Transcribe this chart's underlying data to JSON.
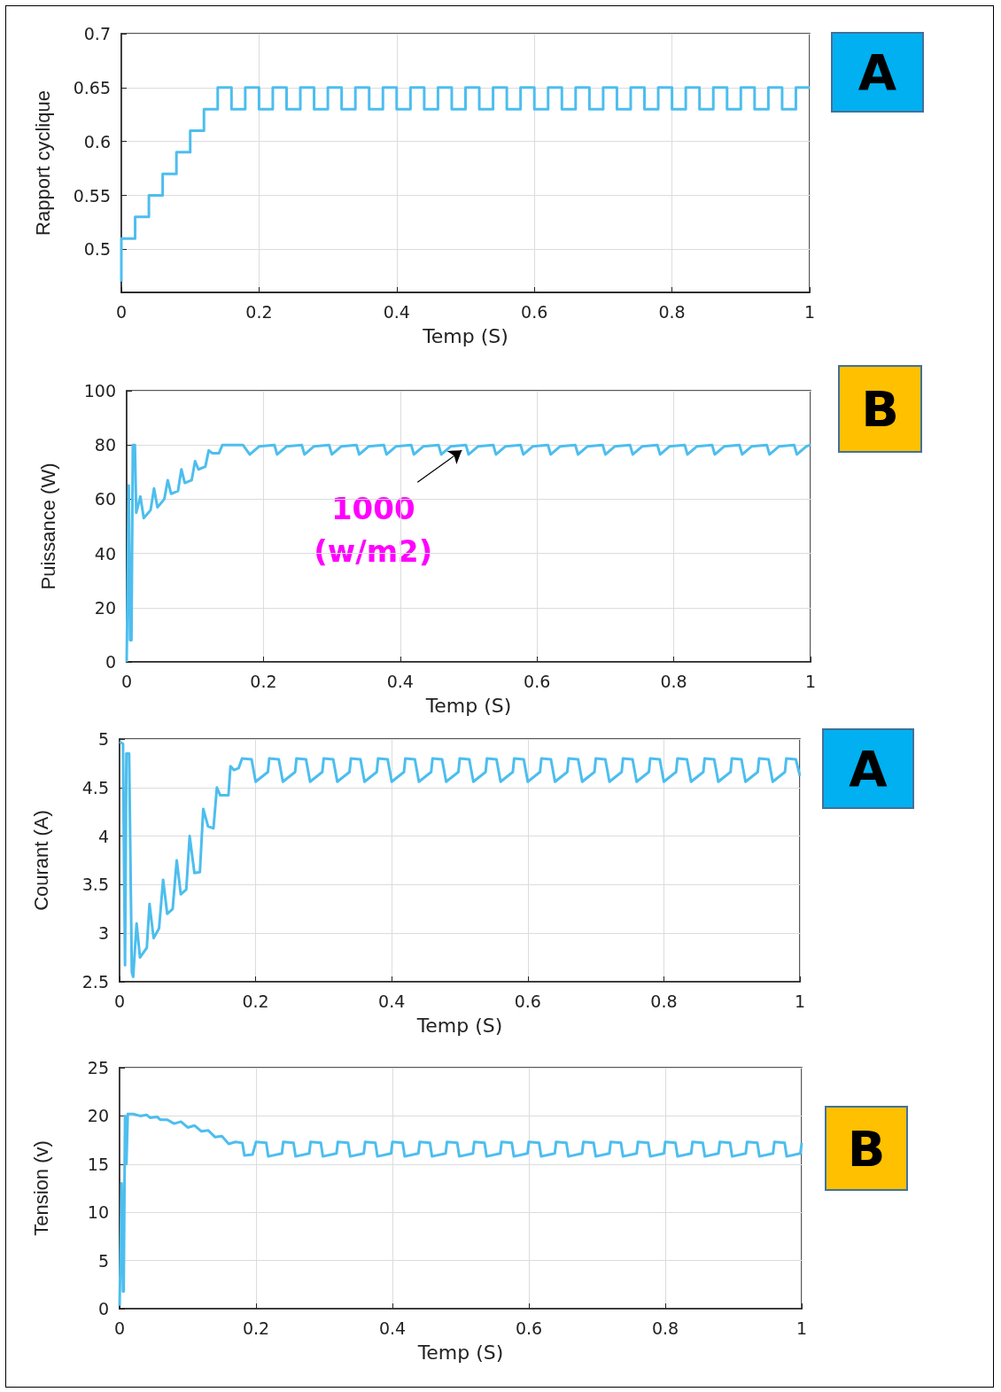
{
  "chart_data": [
    {
      "type": "step",
      "xlabel": "Temp (S)",
      "ylabel": "Rapport cyclique",
      "annotations": [
        "A"
      ],
      "xlim": [
        0,
        1
      ],
      "xticks": [
        0,
        0.2,
        0.4,
        0.6,
        0.8,
        1
      ],
      "ylim": [
        0.46,
        0.7
      ],
      "yticks": [
        0.5,
        0.55,
        0.6,
        0.65,
        0.7
      ],
      "grid": true,
      "series": [
        {
          "color": "#4dbeee",
          "x": [
            0,
            0,
            0.02,
            0.04,
            0.06,
            0.08,
            0.1,
            0.12,
            0.14,
            0.16,
            0.18,
            0.2,
            0.22,
            0.24,
            0.26,
            0.28,
            0.3,
            0.32,
            0.34,
            0.36,
            0.38,
            0.4,
            0.42,
            0.44,
            0.46,
            0.48,
            0.5,
            0.52,
            0.54,
            0.56,
            0.58,
            0.6,
            0.62,
            0.64,
            0.66,
            0.68,
            0.7,
            0.72,
            0.74,
            0.76,
            0.78,
            0.8,
            0.82,
            0.84,
            0.86,
            0.88,
            0.9,
            0.92,
            0.94,
            0.96,
            0.98,
            1
          ],
          "values": [
            0.47,
            0.51,
            0.53,
            0.55,
            0.57,
            0.59,
            0.61,
            0.63,
            0.65,
            0.63,
            0.65,
            0.63,
            0.65,
            0.63,
            0.65,
            0.63,
            0.65,
            0.63,
            0.65,
            0.63,
            0.65,
            0.63,
            0.65,
            0.63,
            0.65,
            0.63,
            0.65,
            0.63,
            0.65,
            0.63,
            0.65,
            0.63,
            0.65,
            0.63,
            0.65,
            0.63,
            0.65,
            0.63,
            0.65,
            0.63,
            0.65,
            0.63,
            0.65,
            0.63,
            0.65,
            0.63,
            0.65,
            0.63,
            0.65,
            0.63,
            0.65,
            0.65
          ]
        }
      ]
    },
    {
      "type": "line",
      "xlabel": "Temp (S)",
      "ylabel": "Puissance (W)",
      "annotations": [
        "B",
        {
          "text": "1000\n(w/m2)",
          "x": 0.49,
          "y": 78
        }
      ],
      "xlim": [
        0,
        1
      ],
      "xticks": [
        0,
        0.2,
        0.4,
        0.6,
        0.8,
        1
      ],
      "ylim": [
        0,
        100
      ],
      "yticks": [
        0,
        20,
        40,
        60,
        80,
        100
      ],
      "grid": true,
      "series": [
        {
          "color": "#4dbeee",
          "x": [
            0,
            0.003,
            0.005,
            0.007,
            0.009,
            0.012,
            0.014,
            0.02,
            0.025,
            0.035,
            0.04,
            0.045,
            0.055,
            0.06,
            0.065,
            0.075,
            0.08,
            0.085,
            0.095,
            0.1,
            0.105,
            0.115,
            0.12,
            0.125,
            0.135,
            0.14,
            0.17,
            0.18,
            0.194,
            0.216,
            0.22,
            0.234,
            0.256,
            0.26,
            0.274,
            0.296,
            0.3,
            0.314,
            0.336,
            0.34,
            0.354,
            0.376,
            0.38,
            0.394,
            0.416,
            0.42,
            0.434,
            0.456,
            0.46,
            0.474,
            0.496,
            0.5,
            0.514,
            0.536,
            0.54,
            0.554,
            0.576,
            0.58,
            0.594,
            0.616,
            0.62,
            0.634,
            0.656,
            0.66,
            0.674,
            0.696,
            0.7,
            0.714,
            0.736,
            0.74,
            0.754,
            0.776,
            0.78,
            0.794,
            0.816,
            0.82,
            0.834,
            0.856,
            0.86,
            0.874,
            0.896,
            0.9,
            0.914,
            0.936,
            0.94,
            0.954,
            0.976,
            0.98,
            0.994,
            1
          ],
          "values": [
            0,
            65,
            8,
            8,
            80,
            80,
            55,
            61,
            53,
            56,
            64,
            57,
            60,
            67,
            62,
            63,
            71,
            66,
            67,
            74,
            71,
            72,
            78,
            77,
            77,
            80,
            80,
            76.5,
            79.5,
            80,
            76.5,
            79.5,
            80,
            76.5,
            79.5,
            80,
            76.5,
            79.5,
            80,
            76.5,
            79.5,
            80,
            76.5,
            79.5,
            80,
            76.5,
            79.5,
            80,
            76.5,
            79.5,
            80,
            76.5,
            79.5,
            80,
            76.5,
            79.5,
            80,
            76.5,
            79.5,
            80,
            76.5,
            79.5,
            80,
            76.5,
            79.5,
            80,
            76.5,
            79.5,
            80,
            76.5,
            79.5,
            80,
            76.5,
            79.5,
            80,
            76.5,
            79.5,
            80,
            76.5,
            79.5,
            80,
            76.5,
            79.5,
            80,
            76.5,
            79.5,
            80,
            76.5,
            79.5,
            80
          ]
        }
      ]
    },
    {
      "type": "line",
      "xlabel": "Temp (S)",
      "ylabel": "Courant (A)",
      "annotations": [
        "A"
      ],
      "xlim": [
        0,
        1
      ],
      "xticks": [
        0,
        0.2,
        0.4,
        0.6,
        0.8,
        1
      ],
      "ylim": [
        2.5,
        5
      ],
      "yticks": [
        2.5,
        3,
        3.5,
        4,
        4.5,
        5
      ],
      "grid": true,
      "series": [
        {
          "color": "#4dbeee",
          "x": [
            0,
            0.005,
            0.008,
            0.01,
            0.014,
            0.018,
            0.02,
            0.025,
            0.03,
            0.04,
            0.044,
            0.05,
            0.058,
            0.064,
            0.07,
            0.078,
            0.084,
            0.09,
            0.098,
            0.103,
            0.11,
            0.118,
            0.123,
            0.13,
            0.138,
            0.143,
            0.148,
            0.16,
            0.163,
            0.168,
            0.175,
            0.18,
            0.194,
            0.2,
            0.218,
            0.22,
            0.234,
            0.24,
            0.258,
            0.26,
            0.274,
            0.28,
            0.298,
            0.3,
            0.314,
            0.32,
            0.338,
            0.34,
            0.354,
            0.36,
            0.378,
            0.38,
            0.394,
            0.4,
            0.418,
            0.42,
            0.434,
            0.44,
            0.458,
            0.46,
            0.474,
            0.48,
            0.498,
            0.5,
            0.514,
            0.52,
            0.538,
            0.54,
            0.554,
            0.56,
            0.578,
            0.58,
            0.594,
            0.6,
            0.618,
            0.62,
            0.634,
            0.64,
            0.658,
            0.66,
            0.674,
            0.68,
            0.698,
            0.7,
            0.714,
            0.72,
            0.738,
            0.74,
            0.754,
            0.76,
            0.778,
            0.78,
            0.794,
            0.8,
            0.818,
            0.82,
            0.834,
            0.84,
            0.858,
            0.86,
            0.874,
            0.88,
            0.898,
            0.9,
            0.914,
            0.92,
            0.938,
            0.94,
            0.954,
            0.96,
            0.978,
            0.98,
            0.994,
            1
          ],
          "values": [
            4.97,
            4.95,
            2.67,
            4.85,
            4.85,
            2.6,
            2.55,
            3.1,
            2.75,
            2.85,
            3.3,
            2.95,
            3.05,
            3.55,
            3.2,
            3.25,
            3.75,
            3.4,
            3.45,
            4,
            3.62,
            3.63,
            4.28,
            4.1,
            4.08,
            4.5,
            4.42,
            4.42,
            4.72,
            4.68,
            4.7,
            4.8,
            4.79,
            4.56,
            4.66,
            4.8,
            4.79,
            4.56,
            4.66,
            4.8,
            4.79,
            4.56,
            4.66,
            4.8,
            4.79,
            4.56,
            4.66,
            4.8,
            4.79,
            4.56,
            4.66,
            4.8,
            4.79,
            4.56,
            4.66,
            4.8,
            4.79,
            4.56,
            4.66,
            4.8,
            4.79,
            4.56,
            4.66,
            4.8,
            4.79,
            4.56,
            4.66,
            4.8,
            4.79,
            4.56,
            4.66,
            4.8,
            4.79,
            4.56,
            4.66,
            4.8,
            4.79,
            4.56,
            4.66,
            4.8,
            4.79,
            4.56,
            4.66,
            4.8,
            4.79,
            4.56,
            4.66,
            4.8,
            4.79,
            4.56,
            4.66,
            4.8,
            4.79,
            4.56,
            4.66,
            4.8,
            4.79,
            4.56,
            4.66,
            4.8,
            4.79,
            4.56,
            4.66,
            4.8,
            4.79,
            4.56,
            4.66,
            4.8,
            4.79,
            4.56,
            4.66,
            4.8,
            4.79,
            4.62
          ]
        }
      ]
    },
    {
      "type": "line",
      "xlabel": "Temp (S)",
      "ylabel": "Tension (v)",
      "annotations": [
        "B"
      ],
      "xlim": [
        0,
        1
      ],
      "xticks": [
        0,
        0.2,
        0.4,
        0.6,
        0.8,
        1
      ],
      "ylim": [
        0,
        25
      ],
      "yticks": [
        0,
        5,
        10,
        15,
        20,
        25
      ],
      "grid": true,
      "series": [
        {
          "color": "#4dbeee",
          "x": [
            0,
            0.003,
            0.005,
            0.006,
            0.008,
            0.01,
            0.012,
            0.02,
            0.03,
            0.04,
            0.045,
            0.055,
            0.06,
            0.07,
            0.08,
            0.09,
            0.1,
            0.11,
            0.12,
            0.13,
            0.14,
            0.15,
            0.16,
            0.17,
            0.18,
            0.183,
            0.195,
            0.2,
            0.215,
            0.218,
            0.238,
            0.24,
            0.255,
            0.258,
            0.278,
            0.28,
            0.295,
            0.298,
            0.318,
            0.32,
            0.335,
            0.338,
            0.358,
            0.36,
            0.375,
            0.378,
            0.398,
            0.4,
            0.415,
            0.418,
            0.438,
            0.44,
            0.455,
            0.458,
            0.478,
            0.48,
            0.495,
            0.498,
            0.518,
            0.52,
            0.535,
            0.538,
            0.558,
            0.56,
            0.575,
            0.578,
            0.598,
            0.6,
            0.615,
            0.618,
            0.638,
            0.64,
            0.655,
            0.658,
            0.678,
            0.68,
            0.695,
            0.698,
            0.718,
            0.72,
            0.735,
            0.738,
            0.758,
            0.76,
            0.775,
            0.778,
            0.798,
            0.8,
            0.815,
            0.818,
            0.838,
            0.84,
            0.855,
            0.858,
            0.878,
            0.88,
            0.895,
            0.898,
            0.918,
            0.92,
            0.935,
            0.938,
            0.958,
            0.96,
            0.975,
            0.978,
            0.998,
            1
          ],
          "values": [
            0.3,
            13,
            1.8,
            1.8,
            20,
            15,
            20.2,
            20.2,
            20,
            20.1,
            19.8,
            19.9,
            19.6,
            19.6,
            19.2,
            19.4,
            18.8,
            19,
            18.4,
            18.5,
            17.8,
            17.9,
            17.1,
            17.3,
            17.2,
            15.9,
            16,
            17.3,
            17.2,
            15.8,
            16.1,
            17.3,
            17.2,
            15.8,
            16.1,
            17.3,
            17.2,
            15.8,
            16.1,
            17.3,
            17.2,
            15.8,
            16.1,
            17.3,
            17.2,
            15.8,
            16.1,
            17.3,
            17.2,
            15.8,
            16.1,
            17.3,
            17.2,
            15.8,
            16.1,
            17.3,
            17.2,
            15.8,
            16.1,
            17.3,
            17.2,
            15.8,
            16.1,
            17.3,
            17.2,
            15.8,
            16.1,
            17.3,
            17.2,
            15.8,
            16.1,
            17.3,
            17.2,
            15.8,
            16.1,
            17.3,
            17.2,
            15.8,
            16.1,
            17.3,
            17.2,
            15.8,
            16.1,
            17.3,
            17.2,
            15.8,
            16.1,
            17.3,
            17.2,
            15.8,
            16.1,
            17.3,
            17.2,
            15.8,
            16.1,
            17.3,
            17.2,
            15.8,
            16.1,
            17.3,
            17.2,
            15.8,
            16.1,
            17.3,
            17.2,
            15.8,
            16.1,
            17.2
          ]
        }
      ]
    }
  ]
}
